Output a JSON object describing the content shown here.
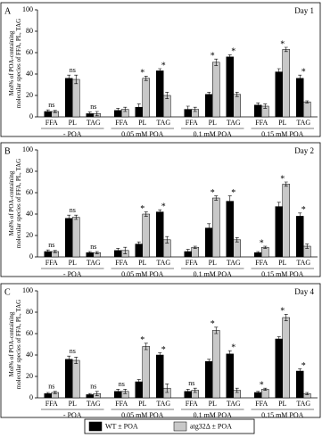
{
  "chart_data": [
    {
      "type": "bar",
      "panel": "A",
      "day": "Day 1",
      "y_label": "Mol% of POA-containing molecular species of FFA, PL, TAG",
      "groups": [
        "- POA",
        "0.05 mM POA",
        "0.1 mM POA",
        "0.15 mM POA"
      ],
      "categories": [
        "FFA",
        "PL",
        "TAG",
        "FFA",
        "PL",
        "TAG",
        "FFA",
        "PL",
        "TAG",
        "FFA",
        "PL",
        "TAG"
      ],
      "series": [
        {
          "color": "#000000",
          "values": [
            5,
            36,
            3,
            6,
            9,
            43,
            7,
            21,
            56,
            11,
            42,
            36
          ],
          "errors": [
            1.5,
            3,
            1.5,
            2,
            3,
            2,
            3,
            2,
            2,
            2,
            3,
            3
          ]
        },
        {
          "color": "#c8c8c8",
          "values": [
            5,
            35,
            3,
            7,
            36,
            20,
            7,
            51,
            21,
            10,
            63,
            14
          ],
          "errors": [
            1,
            4,
            2,
            2,
            2,
            3,
            2,
            3,
            2,
            2,
            2,
            1
          ]
        }
      ],
      "annotations": [
        "ns",
        "ns",
        "ns",
        null,
        "*",
        "*",
        null,
        "*",
        "*",
        null,
        "*",
        "*"
      ],
      "ylim": [
        0,
        100
      ],
      "yticks": [
        0,
        20,
        40,
        60,
        80,
        100
      ]
    },
    {
      "type": "bar",
      "panel": "B",
      "day": "Day 2",
      "y_label": "Mol% of POA-containing molecular species of FFA, PL, TAG",
      "groups": [
        "- POA",
        "0.05 mM POA",
        "0.1 mM POA",
        "0.15 mM POA"
      ],
      "categories": [
        "FFA",
        "PL",
        "TAG",
        "FFA",
        "PL",
        "TAG",
        "FFA",
        "PL",
        "TAG",
        "FFA",
        "PL",
        "TAG"
      ],
      "series": [
        {
          "color": "#000000",
          "values": [
            5,
            36,
            4,
            6,
            12,
            42,
            5,
            27,
            52,
            4,
            47,
            38
          ],
          "errors": [
            1.5,
            3,
            1,
            2,
            2,
            2,
            2,
            4,
            5,
            1,
            4,
            3
          ]
        },
        {
          "color": "#c8c8c8",
          "values": [
            5,
            37,
            4,
            6,
            40,
            16,
            9,
            55,
            16,
            9,
            68,
            10
          ],
          "errors": [
            1,
            2,
            1,
            3,
            2,
            3,
            1,
            2,
            2,
            1,
            2,
            2
          ]
        }
      ],
      "annotations": [
        "ns",
        "ns",
        "ns",
        null,
        "*",
        "*",
        null,
        "*",
        "*",
        "*",
        "*",
        "*"
      ],
      "ylim": [
        0,
        100
      ],
      "yticks": [
        0,
        20,
        40,
        60,
        80,
        100
      ]
    },
    {
      "type": "bar",
      "panel": "C",
      "day": "Day 4",
      "y_label": "Mol% of POA-containing molecular species of FFA, PL, TAG",
      "groups": [
        "- POA",
        "0.05 mM POA",
        "0.1 mM POA",
        "0.15 mM POA"
      ],
      "categories": [
        "FFA",
        "PL",
        "TAG",
        "FFA",
        "PL",
        "TAG",
        "FFA",
        "PL",
        "TAG",
        "FFA",
        "PL",
        "TAG"
      ],
      "series": [
        {
          "color": "#000000",
          "values": [
            4,
            36,
            3,
            6,
            15,
            40,
            6,
            34,
            41,
            5,
            55,
            25
          ],
          "errors": [
            1,
            3,
            1,
            2,
            2,
            2,
            2,
            2,
            3,
            1,
            2,
            2
          ]
        },
        {
          "color": "#c8c8c8",
          "values": [
            5,
            35,
            4,
            6,
            48,
            9,
            7,
            63,
            7,
            8,
            75,
            4
          ],
          "errors": [
            1,
            3,
            2,
            2,
            3,
            4,
            2,
            3,
            2,
            1,
            3,
            1
          ]
        }
      ],
      "annotations": [
        "ns",
        "ns",
        "ns",
        "ns",
        "*",
        "*",
        "ns",
        "*",
        "*",
        "*",
        "*",
        "*"
      ],
      "ylim": [
        0,
        100
      ],
      "yticks": [
        0,
        20,
        40,
        60,
        80,
        100
      ]
    }
  ],
  "legend": [
    {
      "name": "WT ± POA",
      "color": "#000000"
    },
    {
      "name": "atg32Δ ± POA",
      "color": "#c8c8c8"
    }
  ]
}
